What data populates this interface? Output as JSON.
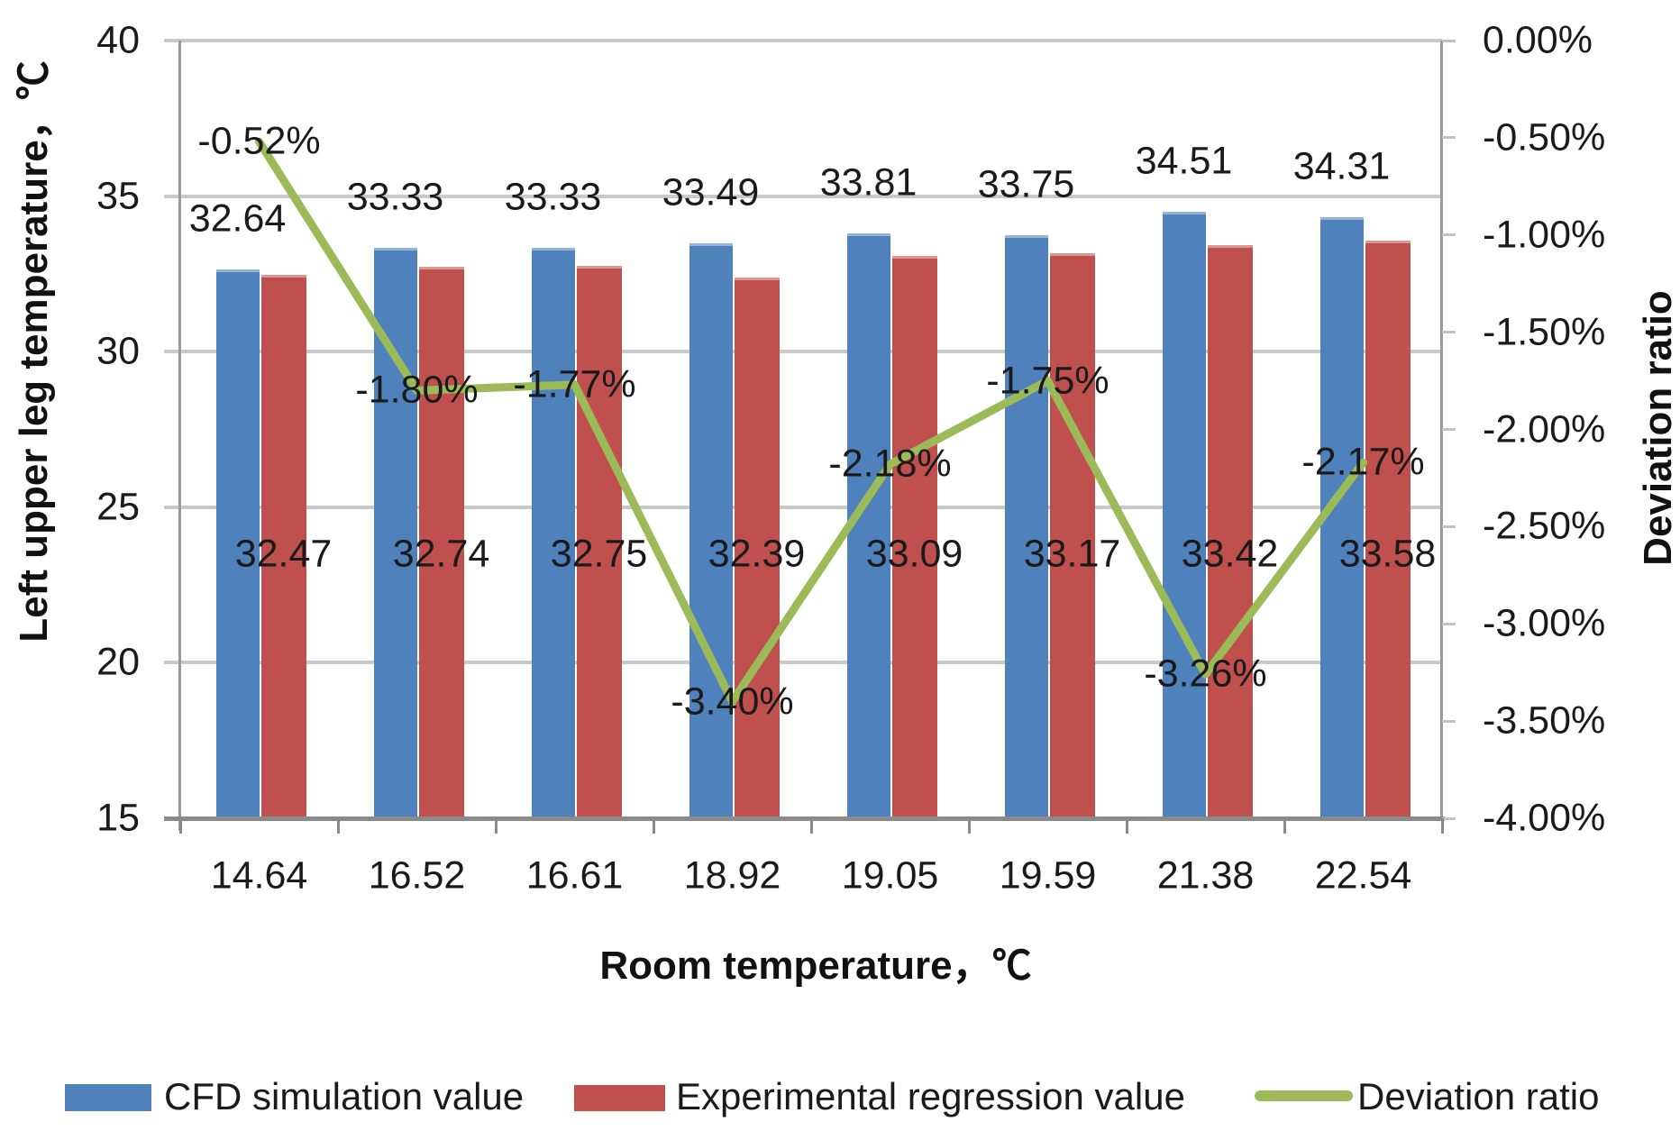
{
  "figure": {
    "x_axis_title": "Room temperature，℃",
    "left_axis_title": "Left upper leg temperature，℃",
    "right_axis_title": "Deviation ratio"
  },
  "legend": {
    "cfd_label": "CFD simulation value",
    "exp_label": "Experimental regression value",
    "dev_label": "Deviation ratio"
  },
  "colors": {
    "cfd_bar": "#4F81BD",
    "exp_bar": "#C0504D",
    "deviation_line": "#9BBB59",
    "gridline": "#c9c9c9",
    "axis": "#9a9a9a"
  },
  "chart_data": {
    "type": "bar+line combo",
    "categories": [
      "14.64",
      "16.52",
      "16.61",
      "18.92",
      "19.05",
      "19.59",
      "21.38",
      "22.54"
    ],
    "series": [
      {
        "name": "CFD simulation value",
        "type": "bar",
        "color": "#4F81BD",
        "values": [
          32.64,
          33.33,
          33.33,
          33.49,
          33.81,
          33.75,
          34.51,
          34.31
        ],
        "labels": [
          "32.64",
          "33.33",
          "33.33",
          "33.49",
          "33.81",
          "33.75",
          "34.51",
          "34.31"
        ]
      },
      {
        "name": "Experimental regression value",
        "type": "bar",
        "color": "#C0504D",
        "values": [
          32.47,
          32.74,
          32.75,
          32.39,
          33.09,
          33.17,
          33.42,
          33.58
        ],
        "labels": [
          "32.47",
          "32.74",
          "32.75",
          "32.39",
          "33.09",
          "33.17",
          "33.42",
          "33.58"
        ]
      },
      {
        "name": "Deviation ratio",
        "type": "line",
        "color": "#9BBB59",
        "values_pct": [
          -0.52,
          -1.8,
          -1.77,
          -3.4,
          -2.18,
          -1.75,
          -3.26,
          -2.17
        ],
        "labels": [
          "-0.52%",
          "-1.80%",
          "-1.77%",
          "-3.40%",
          "-2.18%",
          "-1.75%",
          "-3.26%",
          "-2.17%"
        ]
      }
    ],
    "left_axis": {
      "title": "Left upper leg temperature，℃",
      "range": [
        15,
        40
      ],
      "tick_labels": [
        "40",
        "35",
        "30",
        "25",
        "20",
        "15"
      ],
      "tick_values": [
        40,
        35,
        30,
        25,
        20,
        15
      ]
    },
    "right_axis": {
      "title": "Deviation ratio",
      "range": [
        0,
        -4
      ],
      "tick_labels": [
        "0.00%",
        "-0.50%",
        "-1.00%",
        "-1.50%",
        "-2.00%",
        "-2.50%",
        "-3.00%",
        "-3.50%",
        "-4.00%"
      ],
      "tick_values": [
        0,
        -0.5,
        -1.0,
        -1.5,
        -2.0,
        -2.5,
        -3.0,
        -3.5,
        -4.0
      ]
    },
    "x_axis": {
      "title": "Room temperature，℃"
    },
    "grid": "horizontal gridlines at 5-degree steps of left axis",
    "legend_position": "bottom"
  }
}
